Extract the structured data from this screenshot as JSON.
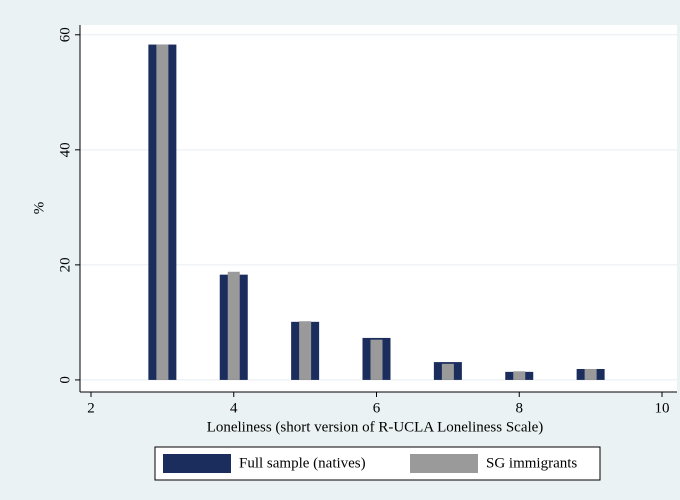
{
  "chart_data": {
    "type": "bar",
    "x": [
      3,
      4,
      5,
      6,
      7,
      8,
      9
    ],
    "series": [
      {
        "name": "Full sample (natives)",
        "color": "#1a2d5c",
        "values": [
          58.3,
          18.3,
          10.1,
          7.3,
          3.1,
          1.4,
          1.9
        ]
      },
      {
        "name": "SG immigrants",
        "color": "#9a9a9a",
        "values": [
          58.3,
          18.8,
          10.2,
          7.0,
          2.8,
          1.5,
          1.9
        ]
      }
    ],
    "xlabel": "Loneliness (short version of R-UCLA Loneliness Scale)",
    "ylabel": "%",
    "xlim": [
      2,
      10
    ],
    "xticks": [
      2,
      4,
      6,
      8,
      10
    ],
    "ylim": [
      -2.1,
      61.7
    ],
    "yticks": [
      0,
      20,
      40,
      60
    ],
    "grid": true,
    "legend": "bottom"
  }
}
